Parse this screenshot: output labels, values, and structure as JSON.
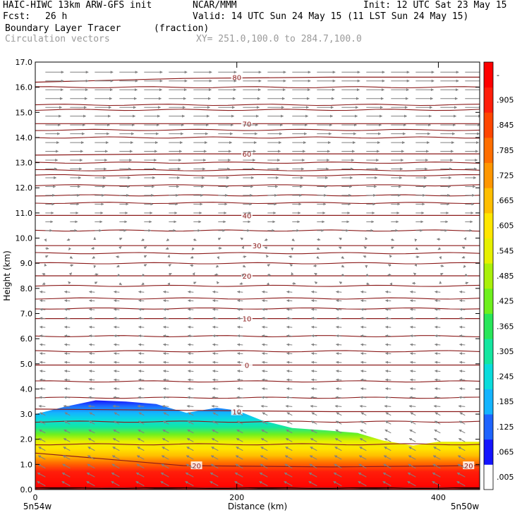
{
  "header": {
    "model": "HAIC-HIWC 13km ARW-GFS init",
    "org": "NCAR/MMM",
    "init": "Init: 12 UTC Sat 23 May 15",
    "fcst_label": "Fcst:",
    "fcst_value": "26 h",
    "valid": "Valid: 14 UTC Sun 24 May 15 (11 LST Sun 24 May 15)",
    "field": "Boundary Layer Tracer",
    "units": "(fraction)",
    "vectors": "Circulation vectors",
    "xy": "XY= 251.0,100.0 to 284.7,100.0"
  },
  "chart_data": {
    "type": "heatmap",
    "ylabel": "Height (km)",
    "xlabel": "Distance (km)",
    "x_range_km": [
      0,
      441
    ],
    "y_range_km": [
      0,
      17
    ],
    "y_ticks": [
      "0.0",
      "1.0",
      "2.0",
      "3.0",
      "4.0",
      "5.0",
      "6.0",
      "7.0",
      "8.0",
      "9.0",
      "10.0",
      "11.0",
      "12.0",
      "13.0",
      "14.0",
      "15.0",
      "16.0",
      "17.0"
    ],
    "x_ticks": [
      {
        "value": 0,
        "label": "0"
      },
      {
        "value": 200,
        "label": "200"
      },
      {
        "value": 400,
        "label": "400"
      }
    ],
    "x_end_labels": {
      "left": "5n54w",
      "right": "5n50w"
    },
    "colorbar": {
      "labels": [
        ".005",
        ".065",
        ".125",
        ".185",
        ".245",
        ".305",
        ".365",
        ".425",
        ".485",
        ".545",
        ".605",
        ".665",
        ".725",
        ".785",
        ".845",
        ".905",
        "-"
      ],
      "colors": [
        "#ffffff",
        "#1414ff",
        "#1e64ff",
        "#14b4ff",
        "#0adcdc",
        "#14e6a0",
        "#28e65a",
        "#6ef01e",
        "#aaf00a",
        "#e6f000",
        "#ffe600",
        "#ffbe00",
        "#ff9600",
        "#ff6e00",
        "#ff4600",
        "#ff1e0a",
        "#ff0000"
      ]
    },
    "tracer_top_profile_km": [
      [
        0,
        3.0
      ],
      [
        30,
        3.3
      ],
      [
        60,
        3.55
      ],
      [
        90,
        3.5
      ],
      [
        120,
        3.4
      ],
      [
        150,
        3.05
      ],
      [
        180,
        3.25
      ],
      [
        200,
        3.15
      ],
      [
        225,
        2.75
      ],
      [
        255,
        2.45
      ],
      [
        290,
        2.35
      ],
      [
        320,
        2.25
      ],
      [
        345,
        1.95
      ],
      [
        375,
        1.75
      ],
      [
        400,
        1.9
      ],
      [
        441,
        1.9
      ]
    ],
    "temperature_contours": [
      {
        "label": "20",
        "height_km": [
          1.45,
          0.95,
          0.9,
          0.95
        ],
        "label_positions": [
          [
            160,
            0.95
          ],
          [
            430,
            0.95
          ]
        ]
      },
      {
        "label": "10",
        "height_km": [
          3.2,
          3.15,
          3.1,
          3.1
        ],
        "label_positions": [
          [
            200,
            3.1
          ]
        ]
      },
      {
        "label": "0",
        "height_km": [
          4.95,
          4.95,
          4.95,
          4.95
        ],
        "label_positions": [
          [
            210,
            4.95
          ]
        ]
      },
      {
        "label": "10",
        "height_km": [
          6.8,
          6.8,
          6.8,
          6.8
        ],
        "label_positions": [
          [
            210,
            6.8
          ]
        ]
      },
      {
        "label": "20",
        "height_km": [
          8.5,
          8.5,
          8.5,
          8.5
        ],
        "label_positions": [
          [
            210,
            8.5
          ]
        ]
      },
      {
        "label": "30",
        "height_km": [
          9.7,
          9.7,
          9.7,
          9.7
        ],
        "label_positions": [
          [
            220,
            9.7
          ]
        ]
      },
      {
        "label": "40",
        "height_km": [
          10.9,
          10.9,
          10.9,
          10.9
        ],
        "label_positions": [
          [
            210,
            10.9
          ]
        ]
      },
      {
        "label": "60",
        "height_km": [
          13.3,
          13.35,
          13.35,
          13.35
        ],
        "label_positions": [
          [
            210,
            13.35
          ]
        ]
      },
      {
        "label": "70",
        "height_km": [
          14.55,
          14.55,
          14.55,
          14.55
        ],
        "label_positions": [
          [
            210,
            14.55
          ]
        ]
      },
      {
        "label": "80",
        "height_km": [
          16.2,
          16.35,
          16.4,
          16.4
        ],
        "label_positions": [
          [
            200,
            16.4
          ]
        ]
      }
    ],
    "unlabeled_contour_heights_km": [
      0.05,
      1.8,
      2.7,
      3.65,
      4.3,
      5.5,
      6.1,
      7.2,
      7.6,
      8.1,
      9.0,
      9.4,
      10.3,
      11.4,
      11.7,
      12.1,
      12.5,
      12.7,
      13.0,
      14.0,
      14.3,
      15.1,
      15.3,
      16.0
    ],
    "vector_field": {
      "upper_level_direction": "eastward",
      "lower_level_direction": "westward",
      "reversal_height_km": 9.0
    }
  }
}
